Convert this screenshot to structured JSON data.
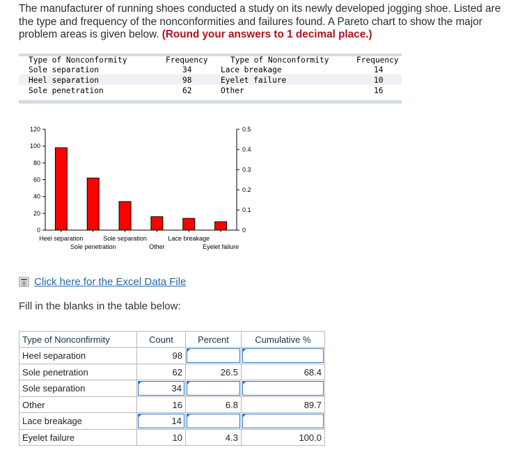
{
  "intro": {
    "text": "The manufacturer of running shoes conducted a study on its newly developed jogging shoe. Listed are the type and frequency of the nonconformities and failures found. A Pareto chart to show the major problem areas is given below. ",
    "emphasis": "(Round your answers to 1 decimal place.)"
  },
  "data_table": {
    "headers": [
      "Type of Nonconformity",
      "Frequency",
      "Type of Nonconformity",
      "Frequency"
    ],
    "left_rows": [
      {
        "type": "Sole separation",
        "frequency": "34"
      },
      {
        "type": "Heel separation",
        "frequency": "98"
      },
      {
        "type": "Sole penetration",
        "frequency": "62"
      }
    ],
    "right_rows": [
      {
        "type": "Lace breakage",
        "frequency": "14"
      },
      {
        "type": "Eyelet failure",
        "frequency": "10"
      },
      {
        "type": "Other",
        "frequency": "16"
      }
    ]
  },
  "chart_data": {
    "type": "bar",
    "categories": [
      "Heel separation",
      "Sole penetration",
      "Sole separation",
      "Other",
      "Lace breakage",
      "Eyelet failure"
    ],
    "values": [
      98,
      62,
      34,
      16,
      14,
      10
    ],
    "left_ticks": [
      "0",
      "20",
      "40",
      "60",
      "80",
      "100",
      "120"
    ],
    "right_ticks": [
      "0",
      "0.1",
      "0.2",
      "0.3",
      "0.4",
      "0.5"
    ],
    "ylim": [
      0,
      120
    ],
    "y2lim": [
      0,
      0.5
    ],
    "bar_color": "#ff0000"
  },
  "excel_link": {
    "label": "Click here for the Excel Data File",
    "icon": "excel-file-icon"
  },
  "prompt": "Fill in the blanks in the table below:",
  "answer_table": {
    "headers": [
      "Type of Nonconfirmity",
      "Count",
      "Percent",
      "Cumulative %"
    ],
    "rows": [
      {
        "type": "Heel separation",
        "count": "98",
        "percent": "",
        "cumulative": ""
      },
      {
        "type": "Sole penetration",
        "count": "62",
        "percent": "26.5",
        "cumulative": "68.4"
      },
      {
        "type": "Sole separation",
        "count": "34",
        "percent": "",
        "cumulative": ""
      },
      {
        "type": "Other",
        "count": "16",
        "percent": "6.8",
        "cumulative": "89.7"
      },
      {
        "type": "Lace breakage",
        "count": "14",
        "percent": "",
        "cumulative": ""
      },
      {
        "type": "Eyelet failure",
        "count": "10",
        "percent": "4.3",
        "cumulative": "100.0"
      }
    ]
  }
}
